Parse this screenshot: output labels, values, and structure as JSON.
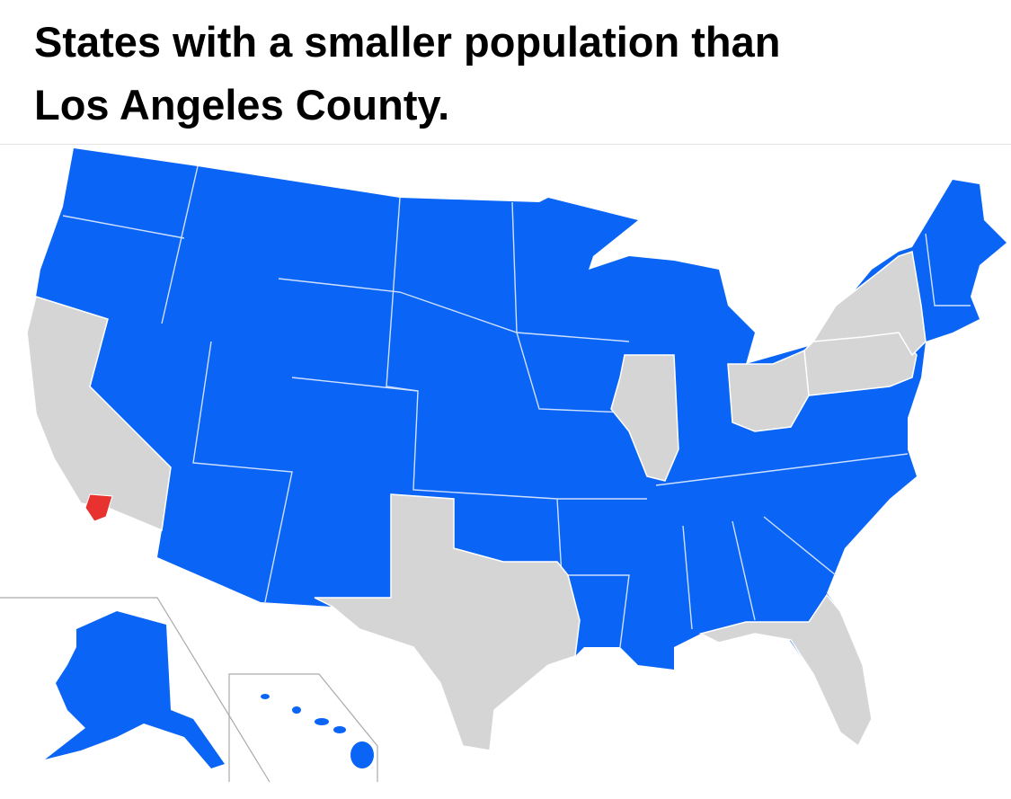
{
  "header": {
    "title_lines": [
      "States with a smaller population than",
      "Los Angeles County."
    ]
  }
}
